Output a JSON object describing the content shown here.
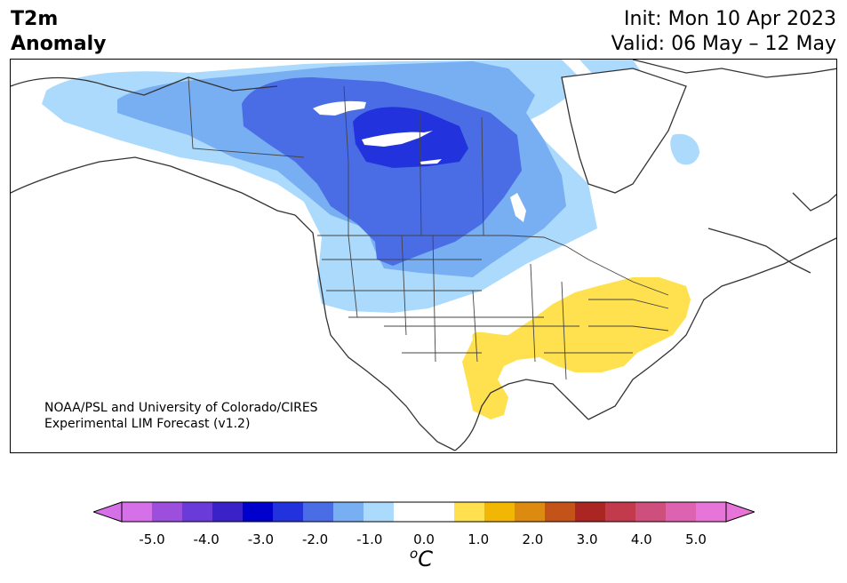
{
  "header": {
    "variable": "T2m",
    "field": "Anomaly",
    "init": "Init: Mon 10 Apr 2023",
    "valid": "Valid: 06 May – 12 May"
  },
  "credit": {
    "line1": "NOAA/PSL and University of Colorado/CIRES",
    "line2": "Experimental LIM Forecast (v1.2)"
  },
  "colorbar": {
    "ticks": [
      "-5.0",
      "-4.0",
      "-3.0",
      "-2.0",
      "-1.0",
      "0.0",
      "1.0",
      "2.0",
      "3.0",
      "4.0",
      "5.0"
    ],
    "unit_sup": "o",
    "unit": "C",
    "colors": [
      "#d670e8",
      "#9b4fdc",
      "#6a3bd8",
      "#3a22c8",
      "#0000cc",
      "#2233dd",
      "#4a6de6",
      "#78aef2",
      "#acdafc",
      "#ffffff",
      "#ffffff",
      "#ffe14f",
      "#f2b705",
      "#dc8a10",
      "#c4531a",
      "#ab2623",
      "#c23a4c",
      "#cf4f7c",
      "#dd63b0",
      "#e774d8"
    ],
    "extend_low": "#d670e8",
    "extend_high": "#e774d8"
  },
  "map": {
    "anomaly_colors": {
      "neg_1": "#acdafc",
      "neg_1_5": "#78aef2",
      "neg_2": "#4a6de6",
      "neg_2_5": "#2233dd",
      "pos_1": "#ffe14f"
    },
    "coast_color": "#333333"
  }
}
